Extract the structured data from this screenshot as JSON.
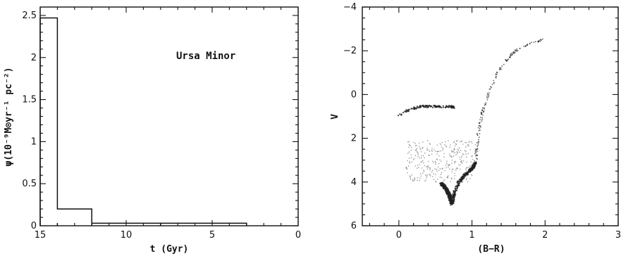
{
  "chart_data": [
    {
      "type": "histogram",
      "title": "",
      "xlabel": "t (Gyr)",
      "ylabel": "ψ(10⁻⁹M⊙yr⁻¹ pc⁻²)",
      "annotation": "Ursa Minor",
      "xlim": [
        15,
        0
      ],
      "ylim": [
        0,
        2.6
      ],
      "x_reversed": true,
      "xticks": [
        15,
        10,
        5,
        0
      ],
      "xtick_labels": [
        "15",
        "10",
        "5",
        "0"
      ],
      "yticks": [
        0,
        0.5,
        1,
        1.5,
        2,
        2.5
      ],
      "ytick_labels": [
        "0",
        "0.5",
        "1",
        "1.5",
        "2",
        "2.5"
      ],
      "bins": [
        {
          "t_start": 15,
          "t_end": 14,
          "value": 2.47
        },
        {
          "t_start": 14,
          "t_end": 12,
          "value": 0.2
        },
        {
          "t_start": 12,
          "t_end": 8,
          "value": 0.03
        },
        {
          "t_start": 8,
          "t_end": 3,
          "value": 0.03
        }
      ],
      "grid": false
    },
    {
      "type": "scatter",
      "title": "",
      "xlabel": "(B−R)",
      "ylabel": "V",
      "xlim": [
        -0.5,
        3
      ],
      "ylim": [
        6,
        -4
      ],
      "y_reversed": true,
      "xticks": [
        0,
        1,
        2,
        3
      ],
      "xtick_labels": [
        "0",
        "1",
        "2",
        "3"
      ],
      "yticks": [
        -4,
        -2,
        0,
        2,
        4,
        6
      ],
      "ytick_labels": [
        "−4",
        "−2",
        "0",
        "2",
        "4",
        "6"
      ],
      "grid": false,
      "components": [
        {
          "part": "main_sequence",
          "x": [
            0.73,
            0.71,
            0.69,
            0.66,
            0.62,
            0.58
          ],
          "y": [
            5.0,
            4.8,
            4.6,
            4.4,
            4.2,
            4.05
          ]
        },
        {
          "part": "turnoff_and_subgiant_branch",
          "x": [
            0.73,
            0.76,
            0.82,
            0.9,
            0.97,
            1.02,
            1.05
          ],
          "y": [
            5.0,
            4.5,
            4.0,
            3.7,
            3.5,
            3.3,
            3.1
          ]
        },
        {
          "part": "red_giant_branch",
          "x": [
            1.05,
            1.06,
            1.08,
            1.1,
            1.13,
            1.17,
            1.22,
            1.28,
            1.35,
            1.45,
            1.56,
            1.7,
            1.85,
            1.97
          ],
          "y": [
            3.1,
            2.6,
            2.0,
            1.5,
            1.0,
            0.5,
            0.0,
            -0.5,
            -1.0,
            -1.5,
            -1.9,
            -2.2,
            -2.4,
            -2.5
          ]
        },
        {
          "part": "horizontal_branch",
          "x": [
            0.0,
            0.1,
            0.2,
            0.3,
            0.4,
            0.5,
            0.6,
            0.7,
            0.75
          ],
          "y": [
            0.95,
            0.75,
            0.62,
            0.55,
            0.55,
            0.55,
            0.55,
            0.55,
            0.6
          ]
        }
      ]
    }
  ]
}
